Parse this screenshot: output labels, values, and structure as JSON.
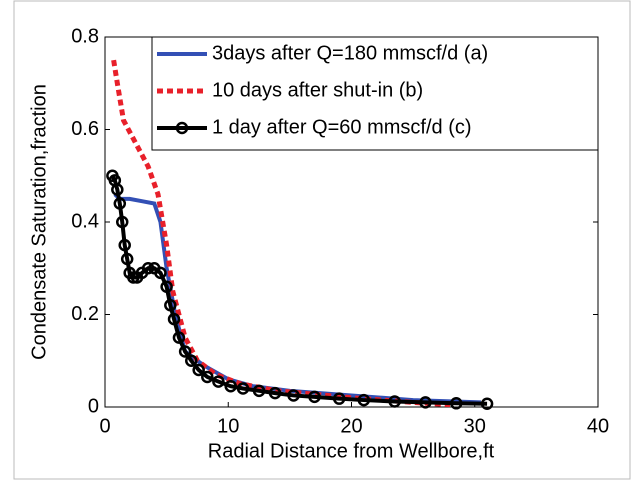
{
  "chart_data": {
    "type": "line",
    "xlabel": "Radial Distance from Wellbore,ft",
    "ylabel": "Condensate Saturation,fraction",
    "xlim": [
      0,
      40
    ],
    "xticks": [
      0,
      10,
      20,
      30,
      40
    ],
    "ylim": [
      0,
      0.8
    ],
    "yticks": [
      0,
      0.2,
      0.4,
      0.6,
      0.8
    ],
    "legend": "upper right",
    "series": [
      {
        "name": "3days after Q=180 mmscf/d (a)",
        "color": "#3350b5",
        "style": "solid",
        "marker": false,
        "x": [
          0.8,
          1.2,
          2,
          3,
          4,
          4.5,
          5,
          5.7,
          6.5,
          8,
          10,
          12,
          15,
          20,
          25,
          30.5
        ],
        "values": [
          0.46,
          0.45,
          0.45,
          0.445,
          0.44,
          0.4,
          0.3,
          0.2,
          0.12,
          0.09,
          0.06,
          0.045,
          0.035,
          0.025,
          0.015,
          0.01
        ]
      },
      {
        "name": "10 days after shut-in (b)",
        "color": "#e8202a",
        "style": "dashed",
        "marker": false,
        "x": [
          0.7,
          1,
          1.5,
          2.5,
          3.5,
          4.3,
          5,
          5.5,
          6.5,
          7.5,
          9,
          11,
          14,
          20,
          25,
          28
        ],
        "values": [
          0.75,
          0.7,
          0.62,
          0.57,
          0.52,
          0.46,
          0.35,
          0.25,
          0.15,
          0.1,
          0.07,
          0.05,
          0.035,
          0.02,
          0.01,
          0.005
        ]
      },
      {
        "name": "1 day after Q=60 mmscf/d (c)",
        "color": "#000000",
        "style": "solid",
        "marker": true,
        "x": [
          0.6,
          0.8,
          1,
          1.2,
          1.4,
          1.6,
          1.8,
          2,
          2.3,
          2.6,
          3,
          3.5,
          4,
          4.5,
          5,
          5.3,
          5.6,
          6,
          6.5,
          7,
          7.6,
          8.3,
          9.2,
          10.2,
          11.2,
          12.5,
          13.8,
          15.3,
          17,
          19,
          21,
          23.5,
          26,
          28.5,
          31
        ],
        "values": [
          0.5,
          0.49,
          0.47,
          0.44,
          0.4,
          0.35,
          0.32,
          0.29,
          0.28,
          0.28,
          0.29,
          0.3,
          0.3,
          0.29,
          0.26,
          0.22,
          0.19,
          0.15,
          0.12,
          0.1,
          0.08,
          0.065,
          0.055,
          0.045,
          0.04,
          0.035,
          0.03,
          0.025,
          0.022,
          0.018,
          0.015,
          0.012,
          0.01,
          0.008,
          0.007
        ]
      }
    ]
  }
}
